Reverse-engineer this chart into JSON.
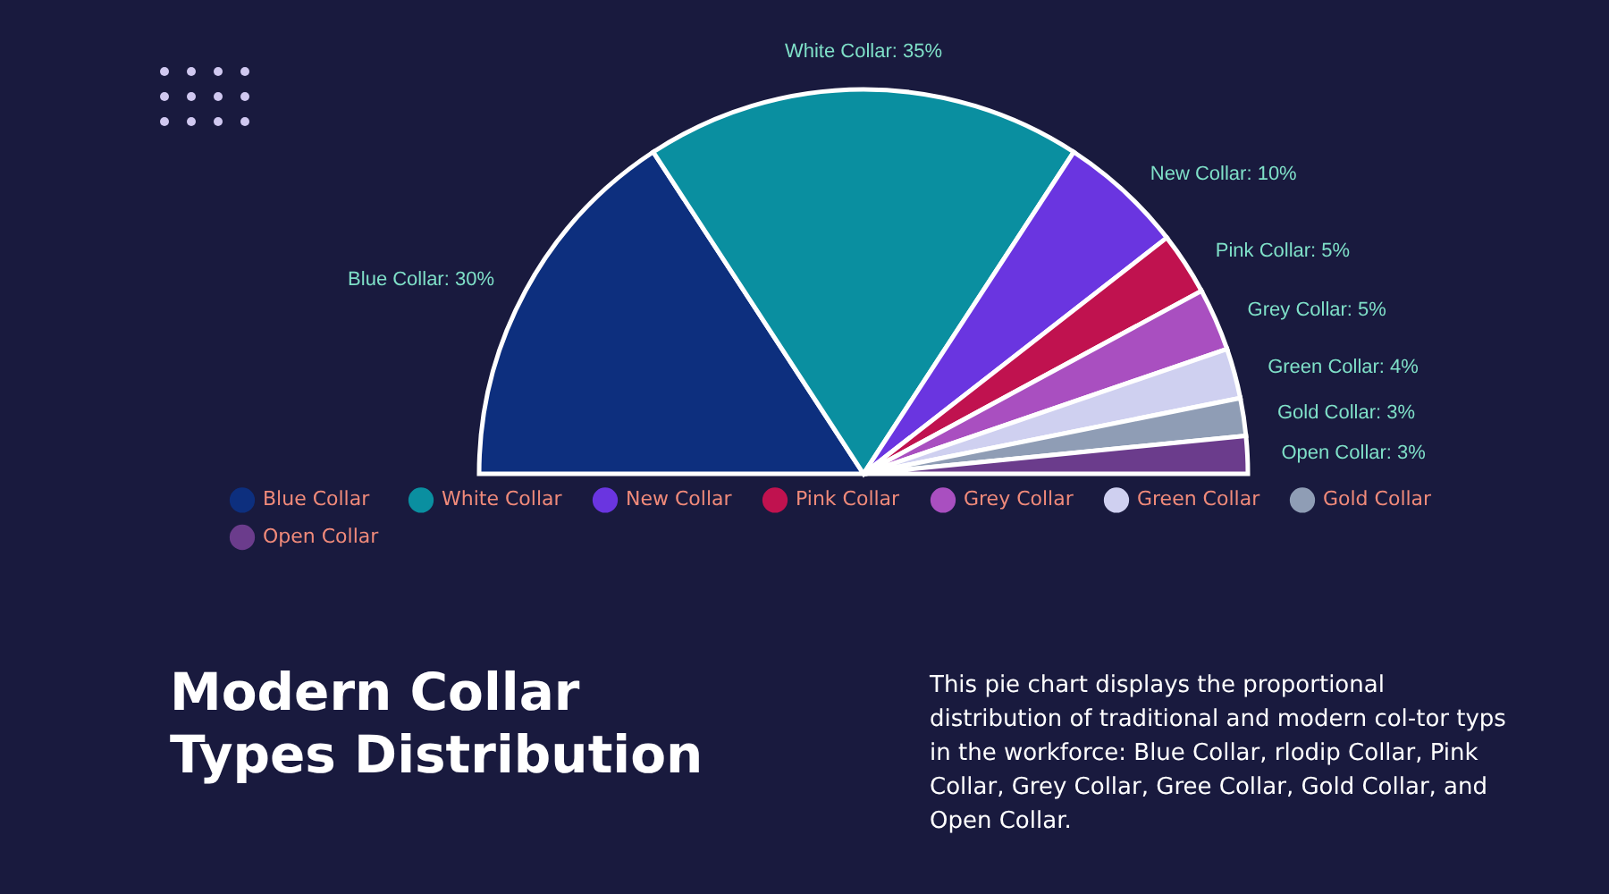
{
  "chart_data": {
    "type": "pie",
    "title": "Modern Collar Types Distribution",
    "categories": [
      "Blue Collar",
      "White Collar",
      "New Collar",
      "Pink Collar",
      "Grey Collar",
      "Green Collar",
      "Gold Collar",
      "Open Collar"
    ],
    "values": [
      30,
      35,
      10,
      5,
      5,
      4,
      3,
      3
    ],
    "colors": [
      "#0d2f7e",
      "#0a8fa0",
      "#6a35e0",
      "#c0124f",
      "#a94fc0",
      "#cfd0f0",
      "#8f9db5",
      "#6b3c8c"
    ],
    "value_labels": [
      "Blue Collar: 30%",
      "White Collar: 35%",
      "New Collar: 10%",
      "Pink Collar: 5%",
      "Grey Collar: 5%",
      "Green Collar: 4%",
      "Gold Collar: 3%",
      "Open Collar: 3%"
    ],
    "legend": "bottom",
    "annotations": [
      "This pie chart displays the proportional distribution of traditional and modern col-tor typs in the workforce: Blue Collar, rlodip Collar, Pink Collar, Grey Collar, Gree Collar, Gold Collar, and Open Collar."
    ]
  }
}
